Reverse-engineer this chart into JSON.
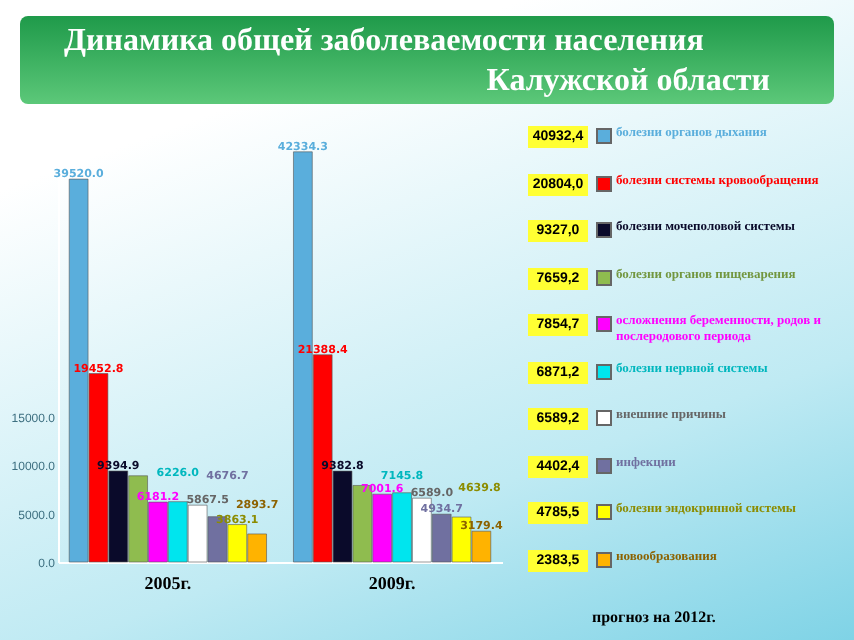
{
  "chart_data": {
    "type": "bar",
    "title": "Динамика общей заболеваемости населения Калужской области",
    "categories": [
      "2005г.",
      "2009г."
    ],
    "series": [
      {
        "name": "болезни органов дыхания",
        "color": "#5aaedc",
        "values": [
          39520.0,
          42334.3
        ],
        "value_labels": [
          "39520.0",
          "42334.3"
        ]
      },
      {
        "name": "болезни системы кровообращения",
        "color": "#ff0000",
        "values": [
          19452.8,
          21388.4
        ],
        "value_labels": [
          "19452.8",
          "21388.4"
        ]
      },
      {
        "name": "болезни мочеполовой системы",
        "color": "#0a0a2a",
        "values": [
          9394.9,
          9382.8
        ],
        "value_labels": [
          "9394.9",
          "9382.8"
        ]
      },
      {
        "name": "болезни органов пищеварения",
        "color": "#8fbc4f",
        "values": [
          8900,
          7900
        ],
        "value_labels": [
          null,
          null
        ]
      },
      {
        "name": "осложнения беременности, родов и послеродового периода",
        "color": "#ff00ff",
        "values": [
          6181.2,
          7001.6
        ],
        "value_labels": [
          "6181.2",
          "7001.6"
        ]
      },
      {
        "name": "болезни нервной системы",
        "color": "#00e5ee",
        "values": [
          6226.0,
          7145.8
        ],
        "value_labels": [
          "6226.0",
          "7145.8"
        ]
      },
      {
        "name": "внешние причины",
        "color": "#ffffff",
        "values": [
          5867.5,
          6589.0
        ],
        "value_labels": [
          "5867.5",
          "6589.0"
        ]
      },
      {
        "name": "инфекции",
        "color": "#7070a0",
        "values": [
          4676.7,
          4934.7
        ],
        "value_labels": [
          "4676.7",
          "4934.7"
        ]
      },
      {
        "name": "болезни эндокринной системы",
        "color": "#ffff00",
        "values": [
          3863.1,
          4639.8
        ],
        "value_labels": [
          "3863.1",
          "4639.8"
        ]
      },
      {
        "name": "новообразования",
        "color": "#ffb300",
        "values": [
          2893.7,
          3179.4
        ],
        "value_labels": [
          "2893.7",
          "3179.4"
        ]
      }
    ],
    "ylim": [
      0,
      45000
    ],
    "yticks": [
      {
        "value": 0,
        "label": "0.0"
      },
      {
        "value": 5000,
        "label": "5000.0"
      },
      {
        "value": 10000,
        "label": "10000.0"
      },
      {
        "value": 15000,
        "label": "15000.0"
      }
    ],
    "grid": false,
    "legend": "right",
    "annotations": [
      "40932,4",
      "20804,0",
      "9327,0",
      "7659,2",
      "7854,7",
      "6871,2",
      "6589,2",
      "4402,4",
      "4785,5",
      "2383,5",
      "прогноз на 2012г."
    ]
  }
}
